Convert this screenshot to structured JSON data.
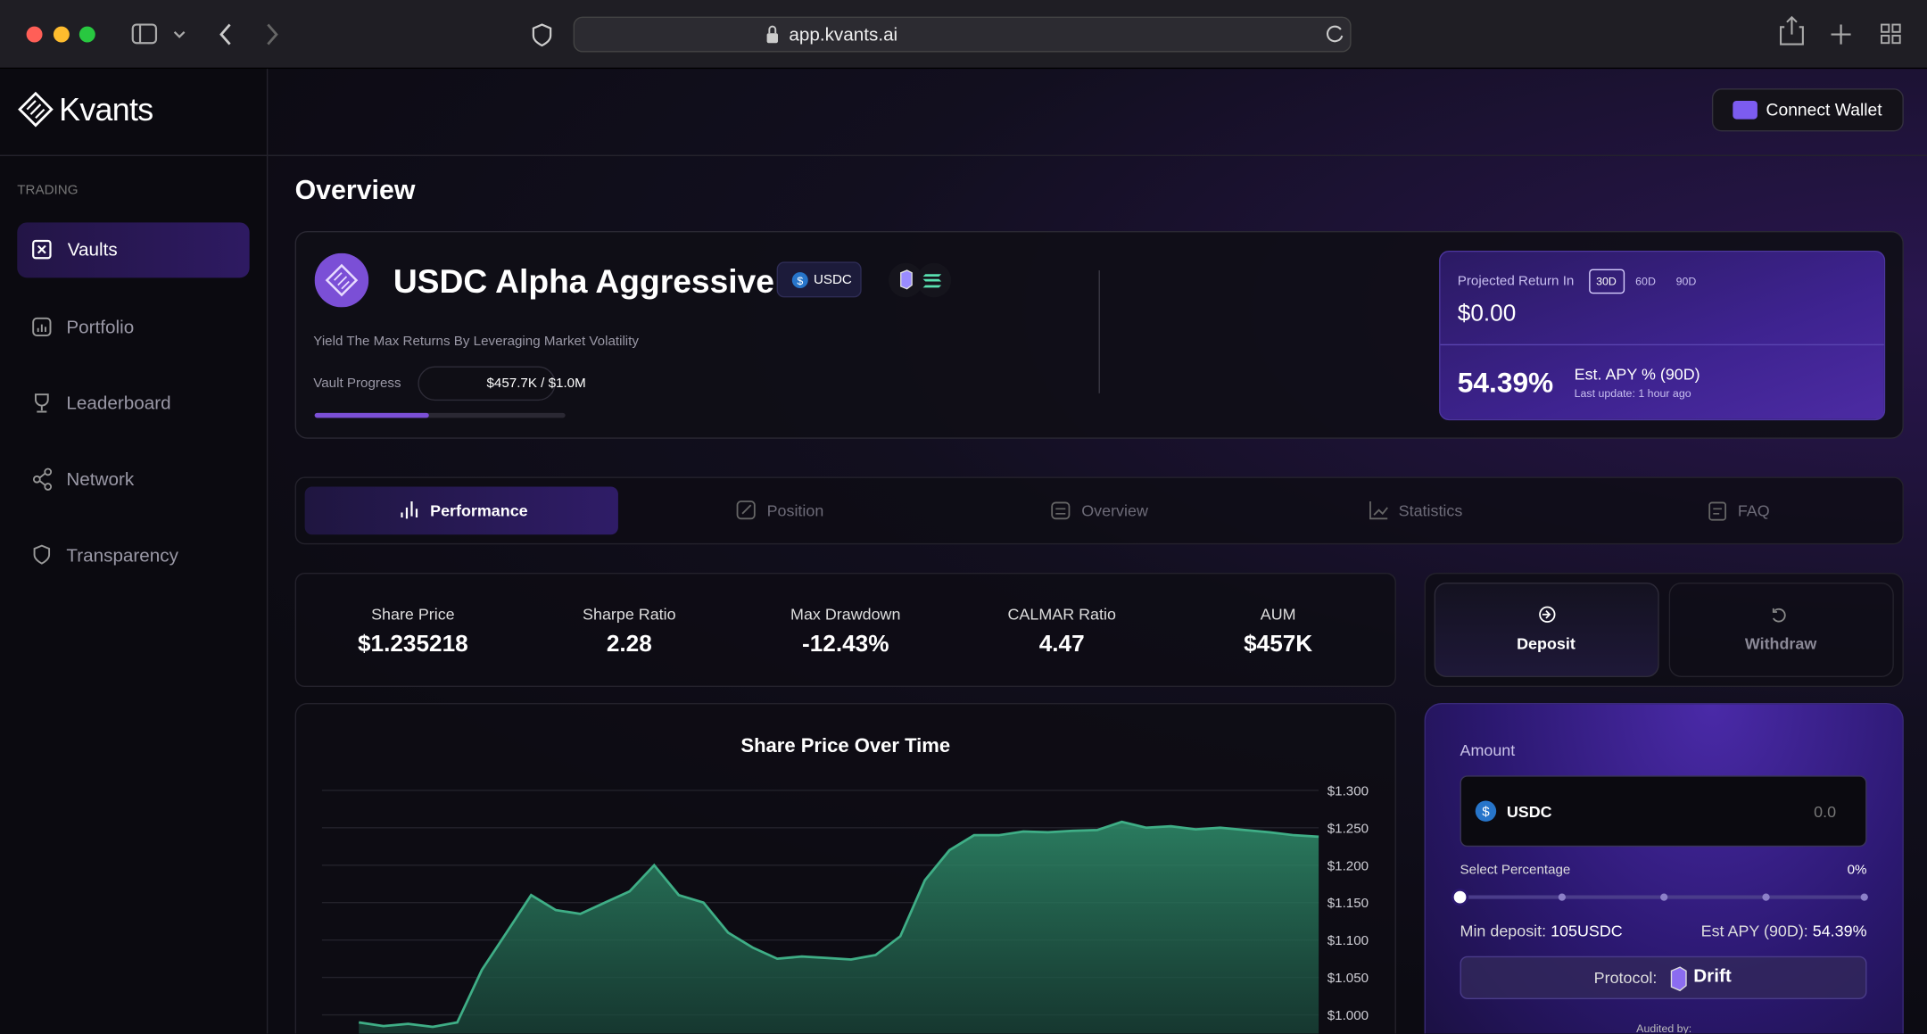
{
  "browser": {
    "url": "app.kvants.ai"
  },
  "header": {
    "brand": "Kvants",
    "connect_wallet": "Connect Wallet"
  },
  "sidebar": {
    "section": "TRADING",
    "items": [
      "Vaults",
      "Portfolio",
      "Leaderboard",
      "Network",
      "Transparency"
    ]
  },
  "page_title": "Overview",
  "vault": {
    "name": "USDC Alpha Aggressive",
    "token": "USDC",
    "tagline": "Yield The Max Returns By Leveraging Market Volatility",
    "progress_label": "Vault Progress",
    "progress_text": "$457.7K / $1.0M"
  },
  "projected": {
    "label": "Projected Return In",
    "periods": [
      "30D",
      "60D",
      "90D"
    ],
    "amount": "$0.00",
    "apy": "54.39%",
    "apy_label": "Est. APY % (90D)",
    "updated": "Last update: 1 hour ago"
  },
  "tabs": [
    "Performance",
    "Position",
    "Overview",
    "Statistics",
    "FAQ"
  ],
  "stats": [
    {
      "label": "Share Price",
      "value": "$1.235218"
    },
    {
      "label": "Sharpe Ratio",
      "value": "2.28"
    },
    {
      "label": "Max Drawdown",
      "value": "-12.43%"
    },
    {
      "label": "CALMAR Ratio",
      "value": "4.47"
    },
    {
      "label": "AUM",
      "value": "$457K"
    }
  ],
  "actions": [
    "Deposit",
    "Withdraw"
  ],
  "deposit": {
    "amount_label": "Amount",
    "token": "USDC",
    "placeholder": "0.0",
    "select_label": "Select Percentage",
    "percent": "0%",
    "min_deposit_label": "Min deposit:",
    "min_deposit": "105USDC",
    "est_apy_label": "Est APY (90D):",
    "est_apy": "54.39%",
    "protocol_label": "Protocol:",
    "protocol": "Drift",
    "audited": "Audited by:"
  },
  "chart": {
    "type": "line",
    "title": "Share Price Over Time",
    "color": "#3fae86",
    "values": [
      0.99,
      0.985,
      0.988,
      0.984,
      0.99,
      1.06,
      1.11,
      1.16,
      1.14,
      1.135,
      1.15,
      1.165,
      1.2,
      1.16,
      1.15,
      1.11,
      1.09,
      1.075,
      1.078,
      1.076,
      1.074,
      1.08,
      1.105,
      1.18,
      1.22,
      1.24,
      1.24,
      1.245,
      1.244,
      1.246,
      1.247,
      1.258,
      1.25,
      1.252,
      1.248,
      1.25,
      1.247,
      1.244,
      1.24,
      1.238
    ],
    "ylim": [
      0.975,
      1.31
    ],
    "yticks": [
      {
        "value": 1.0,
        "label": "$1.000"
      },
      {
        "value": 1.05,
        "label": "$1.050"
      },
      {
        "value": 1.1,
        "label": "$1.100"
      },
      {
        "value": 1.15,
        "label": "$1.150"
      },
      {
        "value": 1.2,
        "label": "$1.200"
      },
      {
        "value": 1.25,
        "label": "$1.250"
      },
      {
        "value": 1.3,
        "label": "$1.300"
      }
    ],
    "grid": true
  }
}
